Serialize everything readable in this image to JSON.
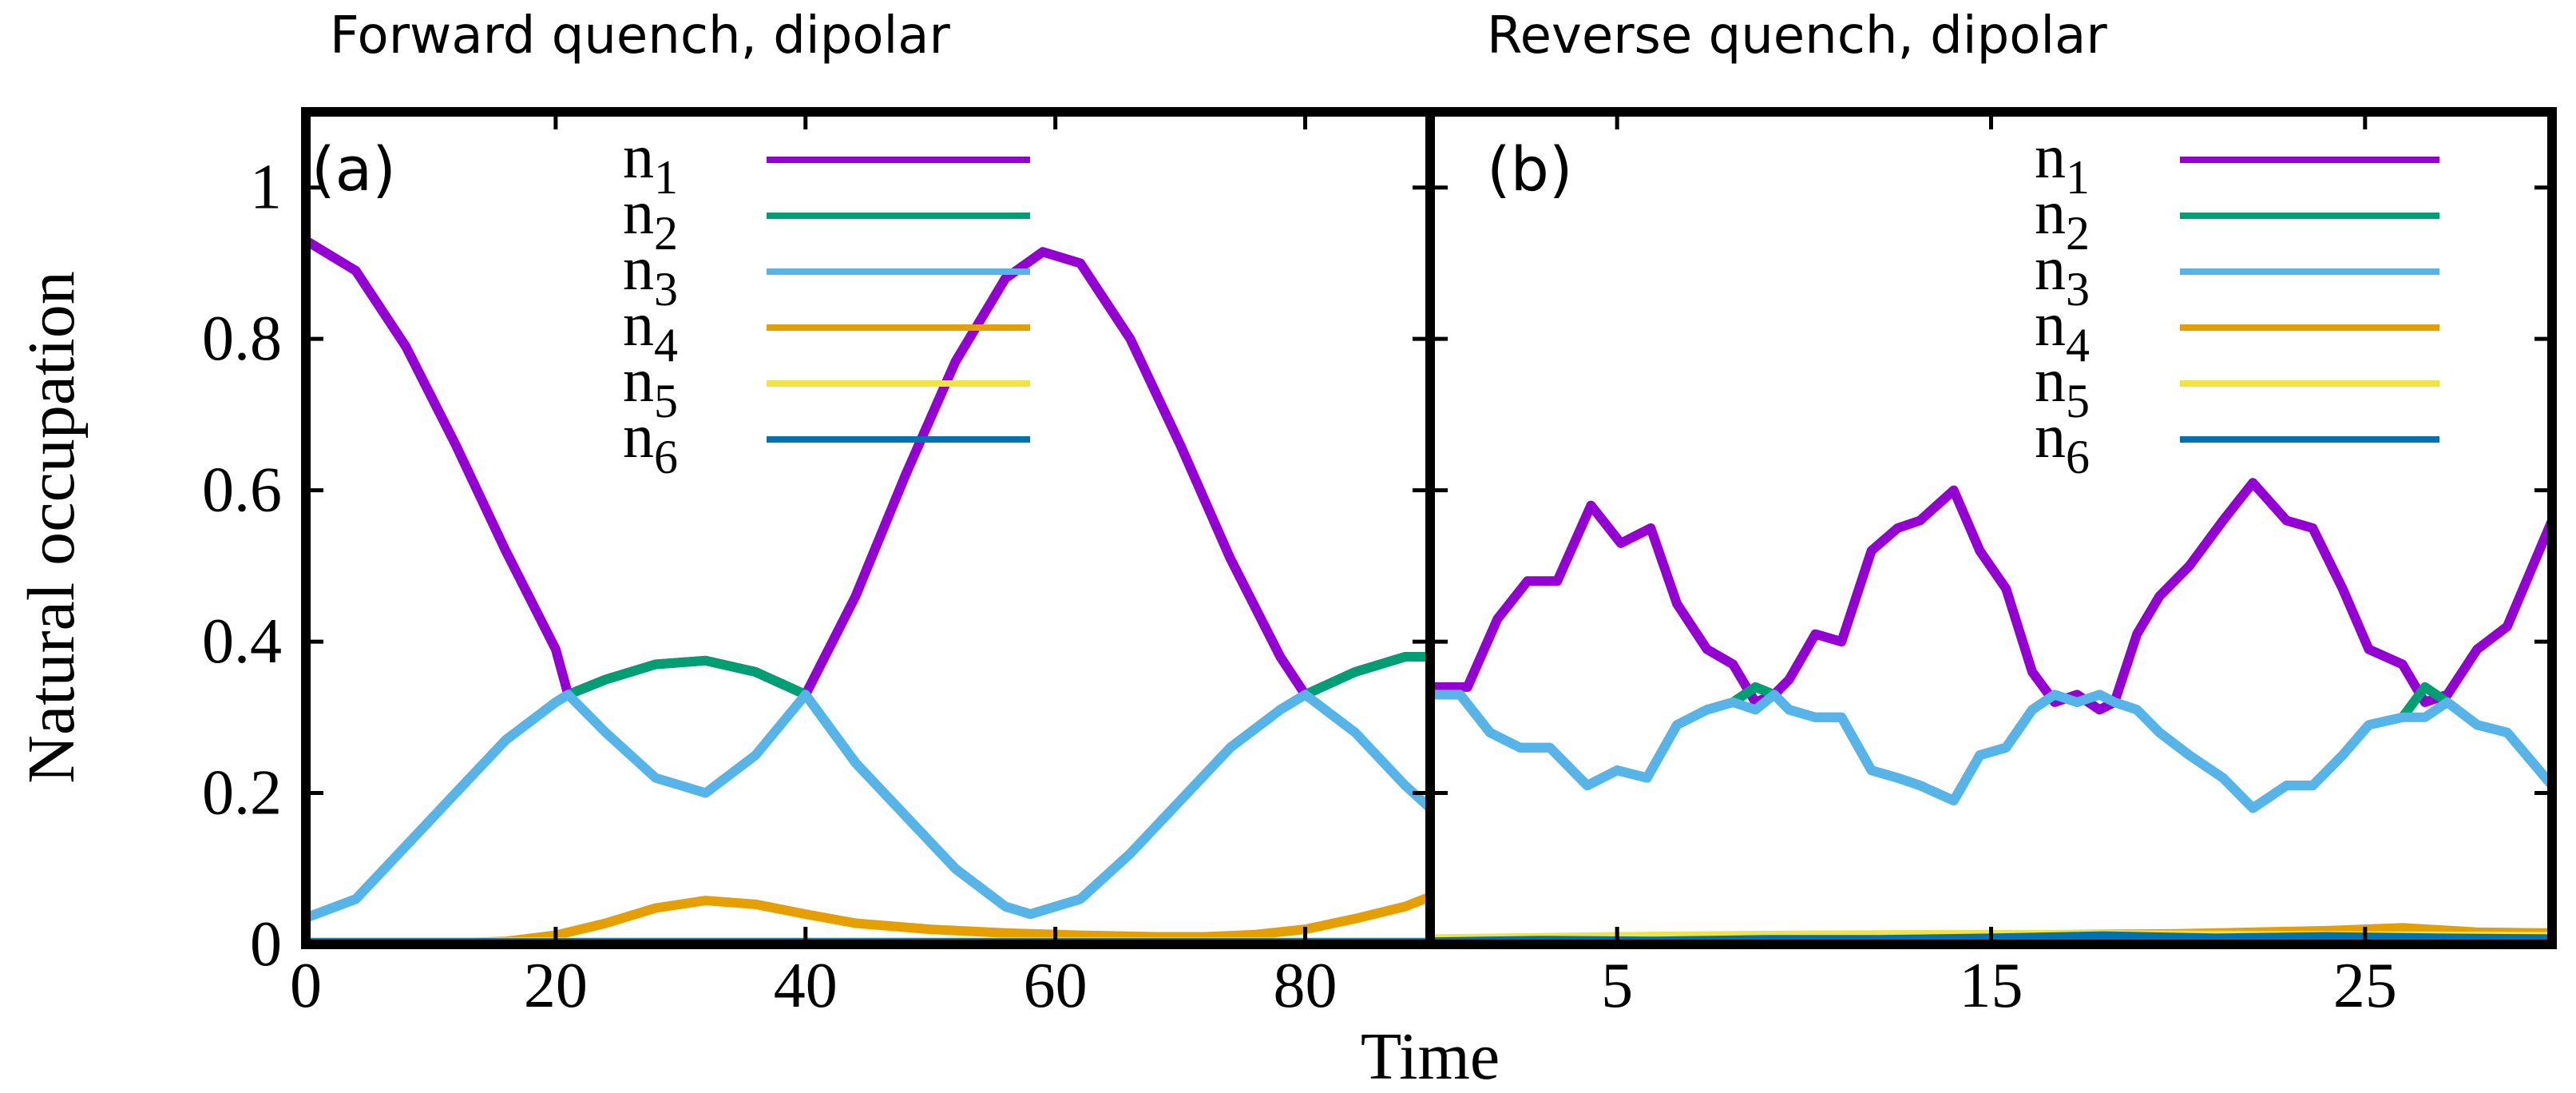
{
  "chart_data": [
    {
      "type": "line",
      "panel_label": "(a)",
      "title": "Forward quench, dipolar",
      "xlabel": "Time",
      "ylabel": "Natural occupation",
      "xlim": [
        0,
        90
      ],
      "ylim": [
        0,
        1.1
      ],
      "xticks": [
        0,
        20,
        40,
        60,
        80
      ],
      "xtick_labels": [
        "0",
        "20",
        "40",
        "60",
        "80"
      ],
      "yticks": [
        0,
        0.2,
        0.4,
        0.6,
        0.8,
        1
      ],
      "ytick_labels": [
        "0",
        "0.2",
        "0.4",
        "0.6",
        "0.8",
        "1"
      ],
      "legend_placement": "top-center",
      "series": [
        {
          "name": "n",
          "subscript": "1",
          "color": "#9400d3",
          "x": [
            0,
            4,
            8,
            12,
            16,
            20,
            21,
            24,
            28,
            32,
            36,
            40,
            44,
            48,
            52,
            56,
            59,
            62,
            66,
            70,
            74,
            78,
            80,
            84,
            88,
            90
          ],
          "y": [
            0.93,
            0.89,
            0.79,
            0.66,
            0.52,
            0.39,
            0.33,
            0.35,
            0.37,
            0.375,
            0.36,
            0.33,
            0.46,
            0.62,
            0.77,
            0.88,
            0.915,
            0.9,
            0.8,
            0.66,
            0.51,
            0.38,
            0.33,
            0.36,
            0.38,
            0.38
          ]
        },
        {
          "name": "n",
          "subscript": "2",
          "color": "#009e73",
          "x": [
            0,
            4,
            8,
            12,
            16,
            20,
            21,
            24,
            28,
            32,
            36,
            40,
            44,
            48,
            52,
            56,
            58,
            62,
            66,
            70,
            74,
            78,
            80,
            84,
            88,
            90
          ],
          "y": [
            0.035,
            0.06,
            0.13,
            0.2,
            0.27,
            0.32,
            0.33,
            0.35,
            0.37,
            0.375,
            0.36,
            0.33,
            0.24,
            0.17,
            0.1,
            0.05,
            0.04,
            0.06,
            0.12,
            0.19,
            0.26,
            0.31,
            0.33,
            0.36,
            0.38,
            0.38
          ]
        },
        {
          "name": "n",
          "subscript": "3",
          "color": "#56b4e9",
          "x": [
            0,
            4,
            8,
            12,
            16,
            20,
            21,
            24,
            28,
            32,
            36,
            40,
            44,
            48,
            52,
            56,
            58,
            62,
            66,
            70,
            74,
            78,
            80,
            84,
            88,
            90
          ],
          "y": [
            0.035,
            0.06,
            0.13,
            0.2,
            0.27,
            0.32,
            0.33,
            0.28,
            0.22,
            0.2,
            0.25,
            0.33,
            0.24,
            0.17,
            0.1,
            0.05,
            0.04,
            0.06,
            0.12,
            0.19,
            0.26,
            0.31,
            0.33,
            0.28,
            0.21,
            0.18
          ]
        },
        {
          "name": "n",
          "subscript": "4",
          "color": "#e69f00",
          "x": [
            0,
            10,
            16,
            20,
            24,
            28,
            32,
            36,
            40,
            44,
            50,
            56,
            62,
            68,
            72,
            76,
            80,
            84,
            88,
            90
          ],
          "y": [
            0,
            0.001,
            0.004,
            0.012,
            0.028,
            0.048,
            0.058,
            0.053,
            0.04,
            0.028,
            0.02,
            0.015,
            0.012,
            0.01,
            0.01,
            0.013,
            0.02,
            0.034,
            0.05,
            0.063
          ]
        },
        {
          "name": "n",
          "subscript": "5",
          "color": "#f0e442",
          "x": [
            0,
            90
          ],
          "y": [
            0.003,
            0.003
          ]
        },
        {
          "name": "n",
          "subscript": "6",
          "color": "#0072b2",
          "x": [
            0,
            90
          ],
          "y": [
            0.002,
            0.002
          ]
        }
      ]
    },
    {
      "type": "line",
      "panel_label": "(b)",
      "title": "Reverse quench, dipolar",
      "xlabel": "Time",
      "ylabel": "Natural occupation",
      "xlim": [
        0,
        30
      ],
      "ylim": [
        0,
        1.1
      ],
      "xticks": [
        5,
        15,
        25
      ],
      "xtick_labels": [
        "5",
        "15",
        "25"
      ],
      "yticks": [
        0,
        0.2,
        0.4,
        0.6,
        0.8,
        1
      ],
      "legend_placement": "top-right",
      "series": [
        {
          "name": "n",
          "subscript": "1",
          "color": "#9400d3",
          "x": [
            0,
            1,
            1.8,
            2.6,
            3.4,
            4.3,
            5.1,
            5.9,
            6.6,
            7.4,
            8.1,
            8.7,
            9.2,
            9.6,
            10.3,
            11,
            11.8,
            12.5,
            13.1,
            14,
            14.7,
            15.4,
            16.1,
            16.7,
            17.3,
            17.9,
            18.3,
            18.9,
            19.5,
            20.3,
            21.2,
            22,
            22.9,
            23.6,
            24.4,
            25.1,
            26,
            26.6,
            27.2,
            28,
            28.8,
            30
          ],
          "y": [
            0.34,
            0.34,
            0.43,
            0.48,
            0.48,
            0.58,
            0.53,
            0.55,
            0.45,
            0.39,
            0.37,
            0.32,
            0.33,
            0.35,
            0.41,
            0.4,
            0.52,
            0.55,
            0.56,
            0.6,
            0.52,
            0.47,
            0.36,
            0.32,
            0.33,
            0.31,
            0.32,
            0.41,
            0.46,
            0.5,
            0.56,
            0.61,
            0.56,
            0.55,
            0.47,
            0.39,
            0.37,
            0.32,
            0.33,
            0.39,
            0.42,
            0.56
          ]
        },
        {
          "name": "n",
          "subscript": "2",
          "color": "#009e73",
          "x": [
            0,
            0.8,
            1.6,
            2.4,
            3.2,
            4.2,
            5.0,
            5.8,
            6.6,
            7.4,
            8.1,
            8.7,
            9.2,
            9.6,
            10.3,
            11,
            11.8,
            12.5,
            13.1,
            14,
            14.7,
            15.4,
            16.1,
            16.7,
            17.3,
            17.9,
            18.3,
            18.9,
            19.5,
            20.3,
            21.2,
            22,
            22.9,
            23.6,
            24.4,
            25.1,
            26,
            26.6,
            27.2,
            28,
            28.8,
            30
          ],
          "y": [
            0.33,
            0.33,
            0.28,
            0.26,
            0.26,
            0.21,
            0.23,
            0.22,
            0.29,
            0.31,
            0.32,
            0.34,
            0.33,
            0.31,
            0.3,
            0.3,
            0.23,
            0.22,
            0.21,
            0.19,
            0.25,
            0.26,
            0.31,
            0.33,
            0.32,
            0.33,
            0.32,
            0.31,
            0.28,
            0.25,
            0.22,
            0.18,
            0.21,
            0.21,
            0.25,
            0.29,
            0.3,
            0.34,
            0.32,
            0.29,
            0.28,
            0.21
          ]
        },
        {
          "name": "n",
          "subscript": "3",
          "color": "#56b4e9",
          "x": [
            0,
            0.8,
            1.6,
            2.4,
            3.2,
            4.2,
            5.0,
            5.8,
            6.6,
            7.4,
            8.1,
            8.7,
            9.2,
            9.6,
            10.3,
            11,
            11.8,
            12.5,
            13.1,
            14,
            14.7,
            15.4,
            16.1,
            16.7,
            17.3,
            17.9,
            18.3,
            18.9,
            19.5,
            20.3,
            21.2,
            22,
            22.9,
            23.6,
            24.4,
            25.1,
            26,
            26.6,
            27.2,
            28,
            28.8,
            30
          ],
          "y": [
            0.33,
            0.33,
            0.28,
            0.26,
            0.26,
            0.21,
            0.23,
            0.22,
            0.29,
            0.31,
            0.32,
            0.31,
            0.33,
            0.31,
            0.3,
            0.3,
            0.23,
            0.22,
            0.21,
            0.19,
            0.25,
            0.26,
            0.31,
            0.33,
            0.32,
            0.33,
            0.32,
            0.31,
            0.28,
            0.25,
            0.22,
            0.18,
            0.21,
            0.21,
            0.25,
            0.29,
            0.3,
            0.3,
            0.32,
            0.29,
            0.28,
            0.21
          ]
        },
        {
          "name": "n",
          "subscript": "4",
          "color": "#e69f00",
          "x": [
            0,
            5,
            10,
            15,
            20,
            24,
            26,
            28,
            30
          ],
          "y": [
            0.005,
            0.008,
            0.009,
            0.012,
            0.014,
            0.018,
            0.022,
            0.016,
            0.015
          ]
        },
        {
          "name": "n",
          "subscript": "5",
          "color": "#f0e442",
          "x": [
            0,
            5,
            10,
            15,
            20,
            25,
            30
          ],
          "y": [
            0.007,
            0.01,
            0.012,
            0.013,
            0.012,
            0.011,
            0.01
          ]
        },
        {
          "name": "n",
          "subscript": "6",
          "color": "#0072b2",
          "x": [
            0,
            3,
            6,
            9,
            12,
            15,
            18,
            21,
            24,
            27,
            30
          ],
          "y": [
            0.003,
            0.005,
            0.004,
            0.006,
            0.006,
            0.008,
            0.011,
            0.008,
            0.01,
            0.008,
            0.007
          ]
        }
      ]
    }
  ]
}
